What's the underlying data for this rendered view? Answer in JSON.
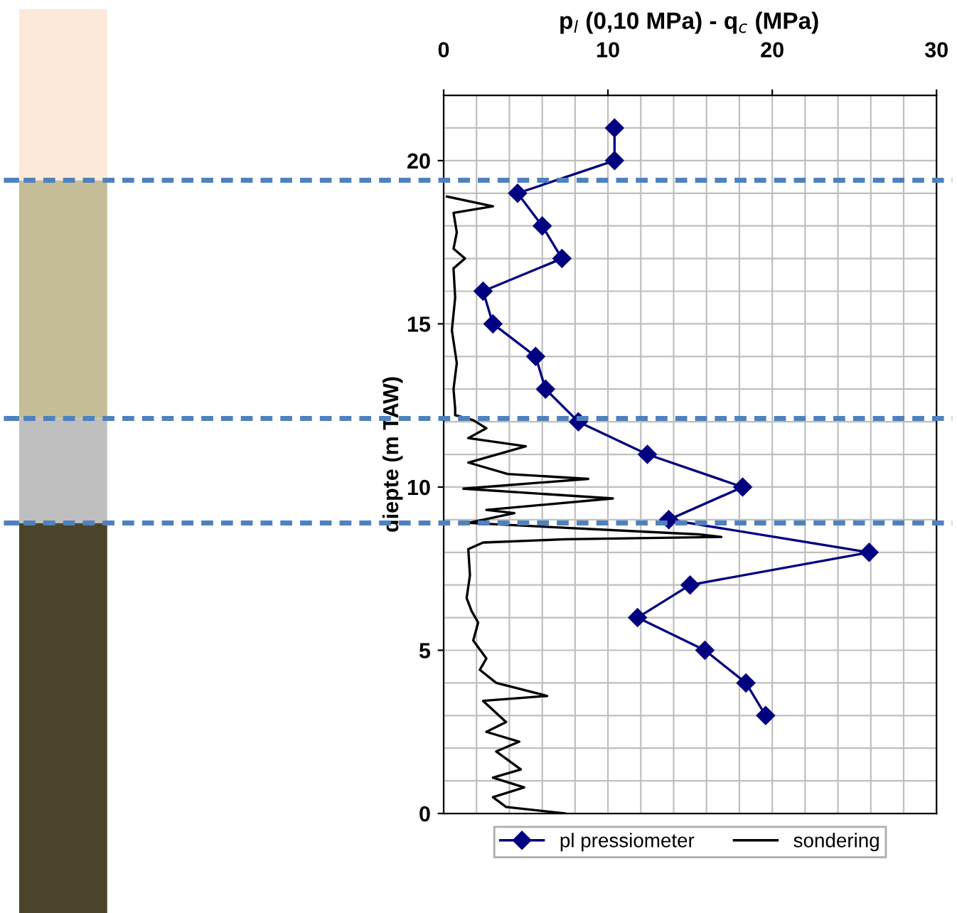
{
  "chart_data": {
    "type": "line",
    "title": "p$_{l}$ (0,10 MPa) - q$_{c}$ (MPa)",
    "ylabel": "diepte (m TAW)",
    "xlim": [
      0,
      30
    ],
    "xticks": [
      0,
      10,
      20,
      30
    ],
    "ylim": [
      0,
      22
    ],
    "yticks": [
      0,
      5,
      10,
      15,
      20
    ],
    "grid": true,
    "legend": "bottom",
    "series": [
      {
        "name": "pl pressiometer",
        "color": "#000080",
        "marker": "diamond",
        "x": [
          10.4,
          10.4,
          4.5,
          6.0,
          7.2,
          2.4,
          3.0,
          5.6,
          6.2,
          8.2,
          12.4,
          18.2,
          13.7,
          25.9,
          15.0,
          11.8,
          15.9,
          18.4,
          19.6
        ],
        "values": [
          21,
          20,
          19,
          18,
          17,
          16,
          15,
          14,
          13,
          12,
          11,
          10,
          9,
          8,
          7,
          6,
          5,
          4,
          3
        ]
      },
      {
        "name": "sondering",
        "color": "#000000",
        "marker": "none",
        "x": [
          0.2,
          3.0,
          0.6,
          0.8,
          0.6,
          1.3,
          0.6,
          0.7,
          0.5,
          0.8,
          0.6,
          0.7,
          0.7,
          1.8,
          2.6,
          1.5,
          5.0,
          1.5,
          3.9,
          8.8,
          1.2,
          10.3,
          2.6,
          4.3,
          1.5,
          15.5,
          16.9,
          7.4,
          2.4,
          1.5,
          1.6,
          1.4,
          1.7,
          2.1,
          1.8,
          2.6,
          2.2,
          3.2,
          6.3,
          2.4,
          3.8,
          2.6,
          4.6,
          3.2,
          4.7,
          3.0,
          4.9,
          3.0,
          3.8,
          7.4
        ],
        "values": [
          18.9,
          18.6,
          18.4,
          17.8,
          17.3,
          17.0,
          16.7,
          15.8,
          14.8,
          13.8,
          13.0,
          12.4,
          12.2,
          12.05,
          11.8,
          11.5,
          11.25,
          10.75,
          10.4,
          10.25,
          9.95,
          9.65,
          9.3,
          9.2,
          8.9,
          8.55,
          8.47,
          8.4,
          8.3,
          8.1,
          7.3,
          6.6,
          6.2,
          5.85,
          5.3,
          4.75,
          4.4,
          4.0,
          3.6,
          3.45,
          2.8,
          2.5,
          2.2,
          1.9,
          1.35,
          1.1,
          0.8,
          0.5,
          0.2,
          0.0
        ]
      }
    ],
    "ref_lines": [
      {
        "axis": "y",
        "value": 19.4,
        "color": "#4f81bd",
        "line_style": "dashed"
      },
      {
        "axis": "y",
        "value": 12.1,
        "color": "#4f81bd",
        "line_style": "dashed"
      },
      {
        "axis": "y",
        "value": 8.9,
        "color": "#4f81bd",
        "line_style": "dashed"
      }
    ]
  }
}
